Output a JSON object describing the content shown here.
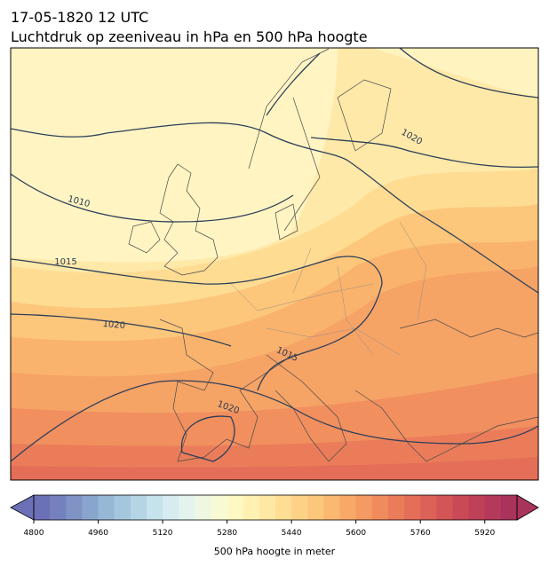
{
  "header": {
    "title": "17-05-1820 12 UTC",
    "subtitle": "Luchtdruk op zeeniveau in hPa en 500 hPa hoogte"
  },
  "map": {
    "contour_labels": [
      "1010",
      "1015",
      "1020",
      "1015",
      "1020",
      "1020"
    ]
  },
  "colorbar": {
    "range": [
      4800,
      6000
    ],
    "ticks": [
      4800,
      4960,
      5120,
      5280,
      5440,
      5600,
      5760,
      5920
    ],
    "label": "500 hPa hoogte in meter",
    "extend": "both",
    "colors": [
      "#6c70b6",
      "#7581bd",
      "#7f93c5",
      "#8aa5cd",
      "#97b7d6",
      "#a5c7de",
      "#b5d5e5",
      "#c6e2ec",
      "#d6ecf0",
      "#e4f3ee",
      "#eff7e2",
      "#f8fad3",
      "#fef8c2",
      "#fff1b2",
      "#ffe8a3",
      "#fede94",
      "#fdd287",
      "#fcc67b",
      "#fab871",
      "#f8a968",
      "#f49a62",
      "#f08b5d",
      "#ea7c5a",
      "#e46e58",
      "#dc6157",
      "#d35556",
      "#c94a56",
      "#bf4157",
      "#b5395a",
      "#aa335c"
    ]
  }
}
